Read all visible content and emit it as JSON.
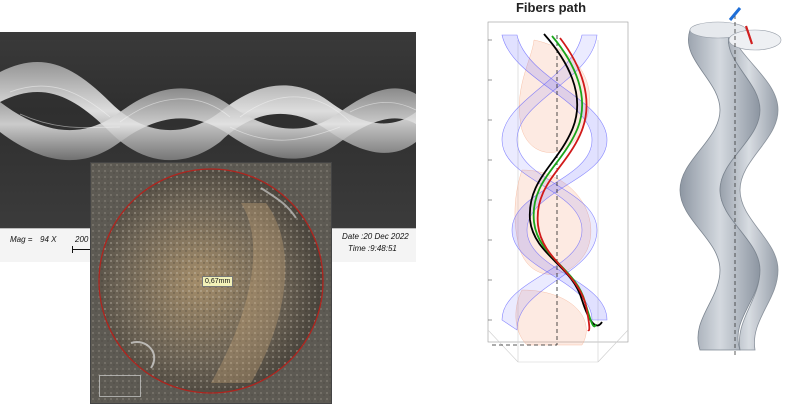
{
  "sem": {
    "mag_label": "Mag =",
    "mag_value": "94 X",
    "scale_value": "200 µ",
    "date": "Date :20 Dec 2022",
    "time": "Time :9:48:51"
  },
  "optical": {
    "diameter_label": "0,67mm"
  },
  "fibers_plot": {
    "title": "Fibers path",
    "series_colors": [
      "#000000",
      "#1aa51a",
      "#d11a1a"
    ],
    "envelope_colors": [
      "#5a5aff",
      "#f4a07a"
    ]
  },
  "model": {
    "body_color": "#aeb6c1",
    "arrow_colors": [
      "#1f6fd8",
      "#d02020"
    ]
  }
}
